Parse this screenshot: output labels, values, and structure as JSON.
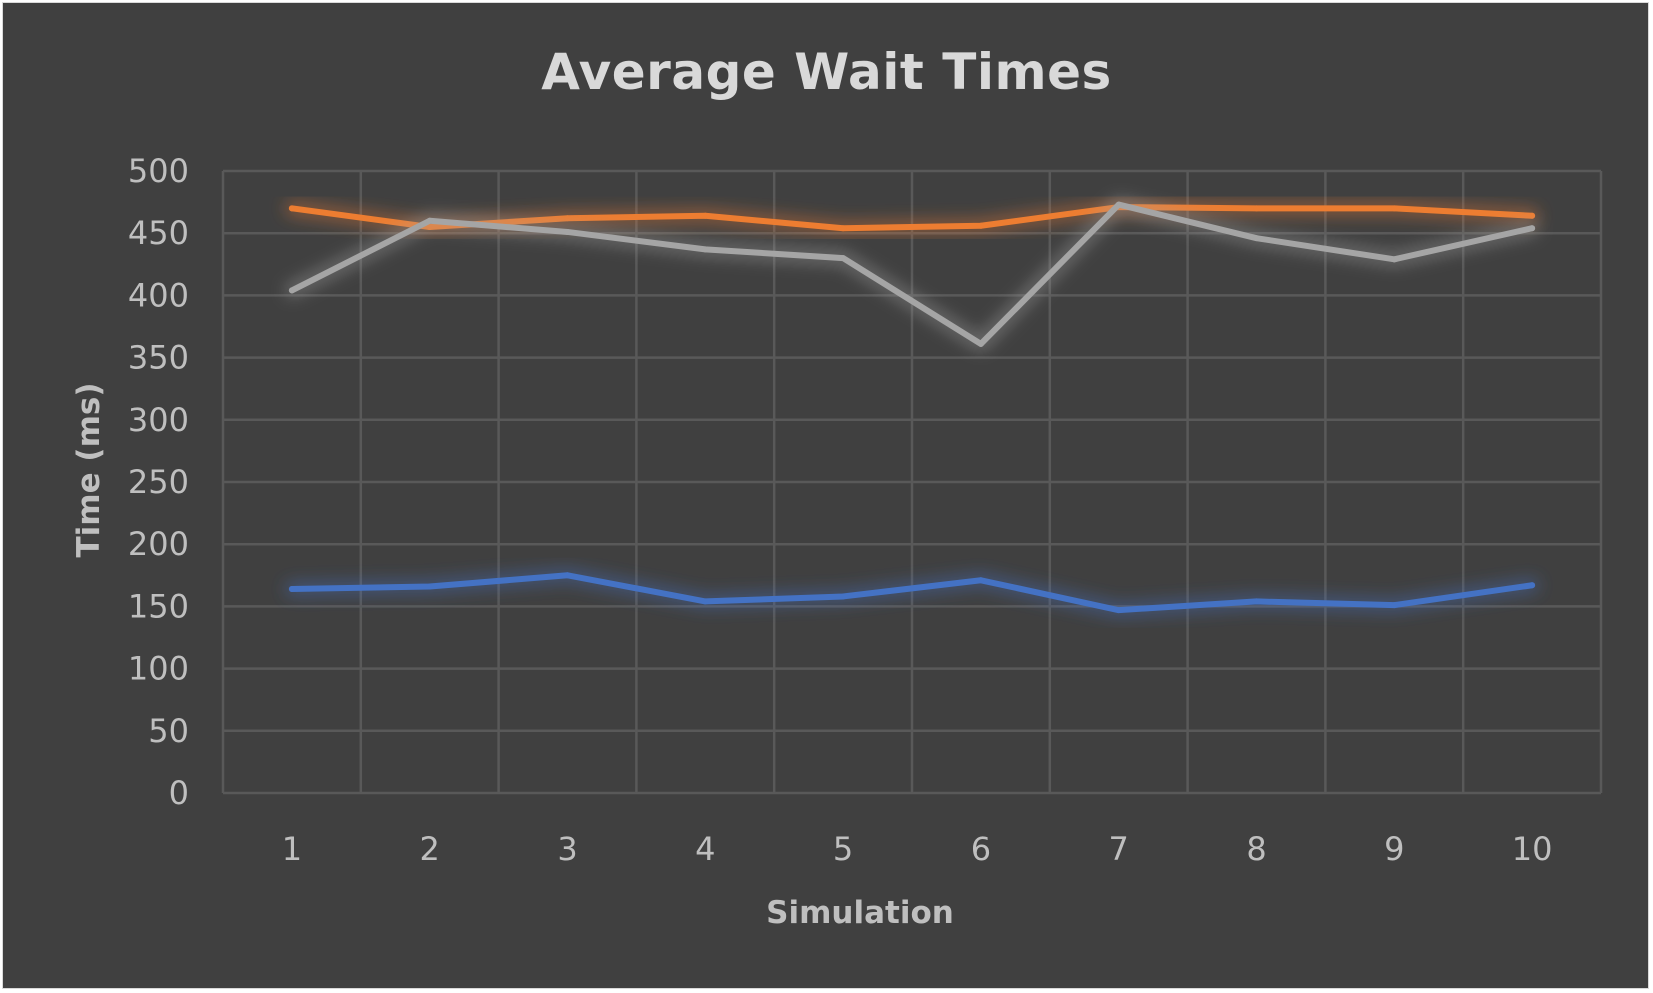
{
  "chart_data": {
    "type": "line",
    "title": "Average Wait Times",
    "xlabel": "Simulation",
    "ylabel": "Time (ms)",
    "ylim": [
      0,
      500
    ],
    "y_ticks": [
      "0",
      "50",
      "100",
      "150",
      "200",
      "250",
      "300",
      "350",
      "400",
      "450",
      "500"
    ],
    "categories": [
      "1",
      "2",
      "3",
      "4",
      "5",
      "6",
      "7",
      "8",
      "9",
      "10"
    ],
    "grid": true,
    "legend": "none",
    "series": [
      {
        "color": "#ed7d31",
        "values": [
          470,
          455,
          462,
          464,
          454,
          456,
          471,
          470,
          470,
          464
        ]
      },
      {
        "color": "#a5a5a5",
        "values": [
          404,
          460,
          451,
          437,
          430,
          361,
          473,
          446,
          429,
          454
        ]
      },
      {
        "color": "#4472c4",
        "values": [
          164,
          166,
          175,
          154,
          158,
          171,
          147,
          154,
          151,
          167
        ]
      }
    ],
    "colors": {
      "background": "#404040",
      "grid": "#595959",
      "text": "#bfbfbf",
      "title": "#d9d9d9"
    }
  }
}
